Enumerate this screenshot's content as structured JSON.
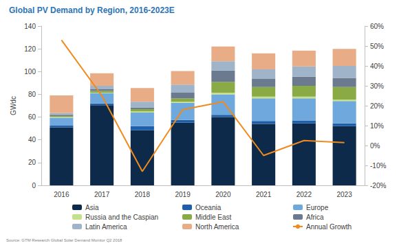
{
  "chart_data": {
    "type": "bar",
    "title": "Global PV Demand by Region, 2016-2023E",
    "source": "Source: GTM Research Global Solar Demand Monitor Q2 2018",
    "y_label": "GWdc",
    "categories": [
      "2016",
      "2017",
      "2018",
      "2019",
      "2020",
      "2021",
      "2022",
      "2023"
    ],
    "stacked": true,
    "grid": false,
    "legend": "bottom",
    "ylim": [
      0,
      140
    ],
    "yticks": [
      0,
      20,
      40,
      60,
      80,
      100,
      120,
      140
    ],
    "y2lim": [
      -20,
      60
    ],
    "y2ticks": [
      {
        "value": -20,
        "label": "-20%"
      },
      {
        "value": -10,
        "label": "-10%"
      },
      {
        "value": 0,
        "label": "0%"
      },
      {
        "value": 10,
        "label": "10%"
      },
      {
        "value": 20,
        "label": "20%"
      },
      {
        "value": 30,
        "label": "30%"
      },
      {
        "value": 40,
        "label": "40%"
      },
      {
        "value": 50,
        "label": "50%"
      },
      {
        "value": 60,
        "label": "60%"
      }
    ],
    "series": [
      {
        "name": "Asia",
        "color": "#0d2a4a",
        "values": [
          51,
          70.5,
          48.5,
          55,
          60,
          54,
          54.5,
          52
        ]
      },
      {
        "name": "Oceania",
        "color": "#1f5fa8",
        "values": [
          1.5,
          1.5,
          3.5,
          2.5,
          2,
          2.5,
          2.5,
          2.5
        ]
      },
      {
        "name": "Europe",
        "color": "#6fa8dc",
        "values": [
          7,
          9,
          12,
          15,
          18,
          20,
          19.5,
          19.5
        ]
      },
      {
        "name": "Russia and the Caspian",
        "color": "#c5e08a",
        "values": [
          0.5,
          0.5,
          1,
          1,
          1.5,
          1.5,
          1.5,
          1.5
        ]
      },
      {
        "name": "Middle East",
        "color": "#8aaa45",
        "values": [
          1,
          1.5,
          2,
          3,
          9.5,
          8.5,
          9.5,
          11
        ]
      },
      {
        "name": "Africa",
        "color": "#6b7a8f",
        "values": [
          1,
          1.5,
          1.5,
          5,
          10,
          7,
          8,
          8
        ]
      },
      {
        "name": "Latin America",
        "color": "#9fb4c8",
        "values": [
          1.5,
          3,
          5,
          7,
          8,
          8.5,
          9,
          10.5
        ]
      },
      {
        "name": "North America",
        "color": "#e8ad86",
        "values": [
          15.5,
          11,
          12,
          12,
          13,
          14,
          14,
          15
        ]
      },
      {
        "name": "Annual Growth",
        "color": "#f08a1c",
        "type": "line",
        "axis": "y2",
        "values": [
          53,
          25,
          -13,
          18,
          22,
          -5,
          2.5,
          1.5
        ]
      }
    ]
  }
}
